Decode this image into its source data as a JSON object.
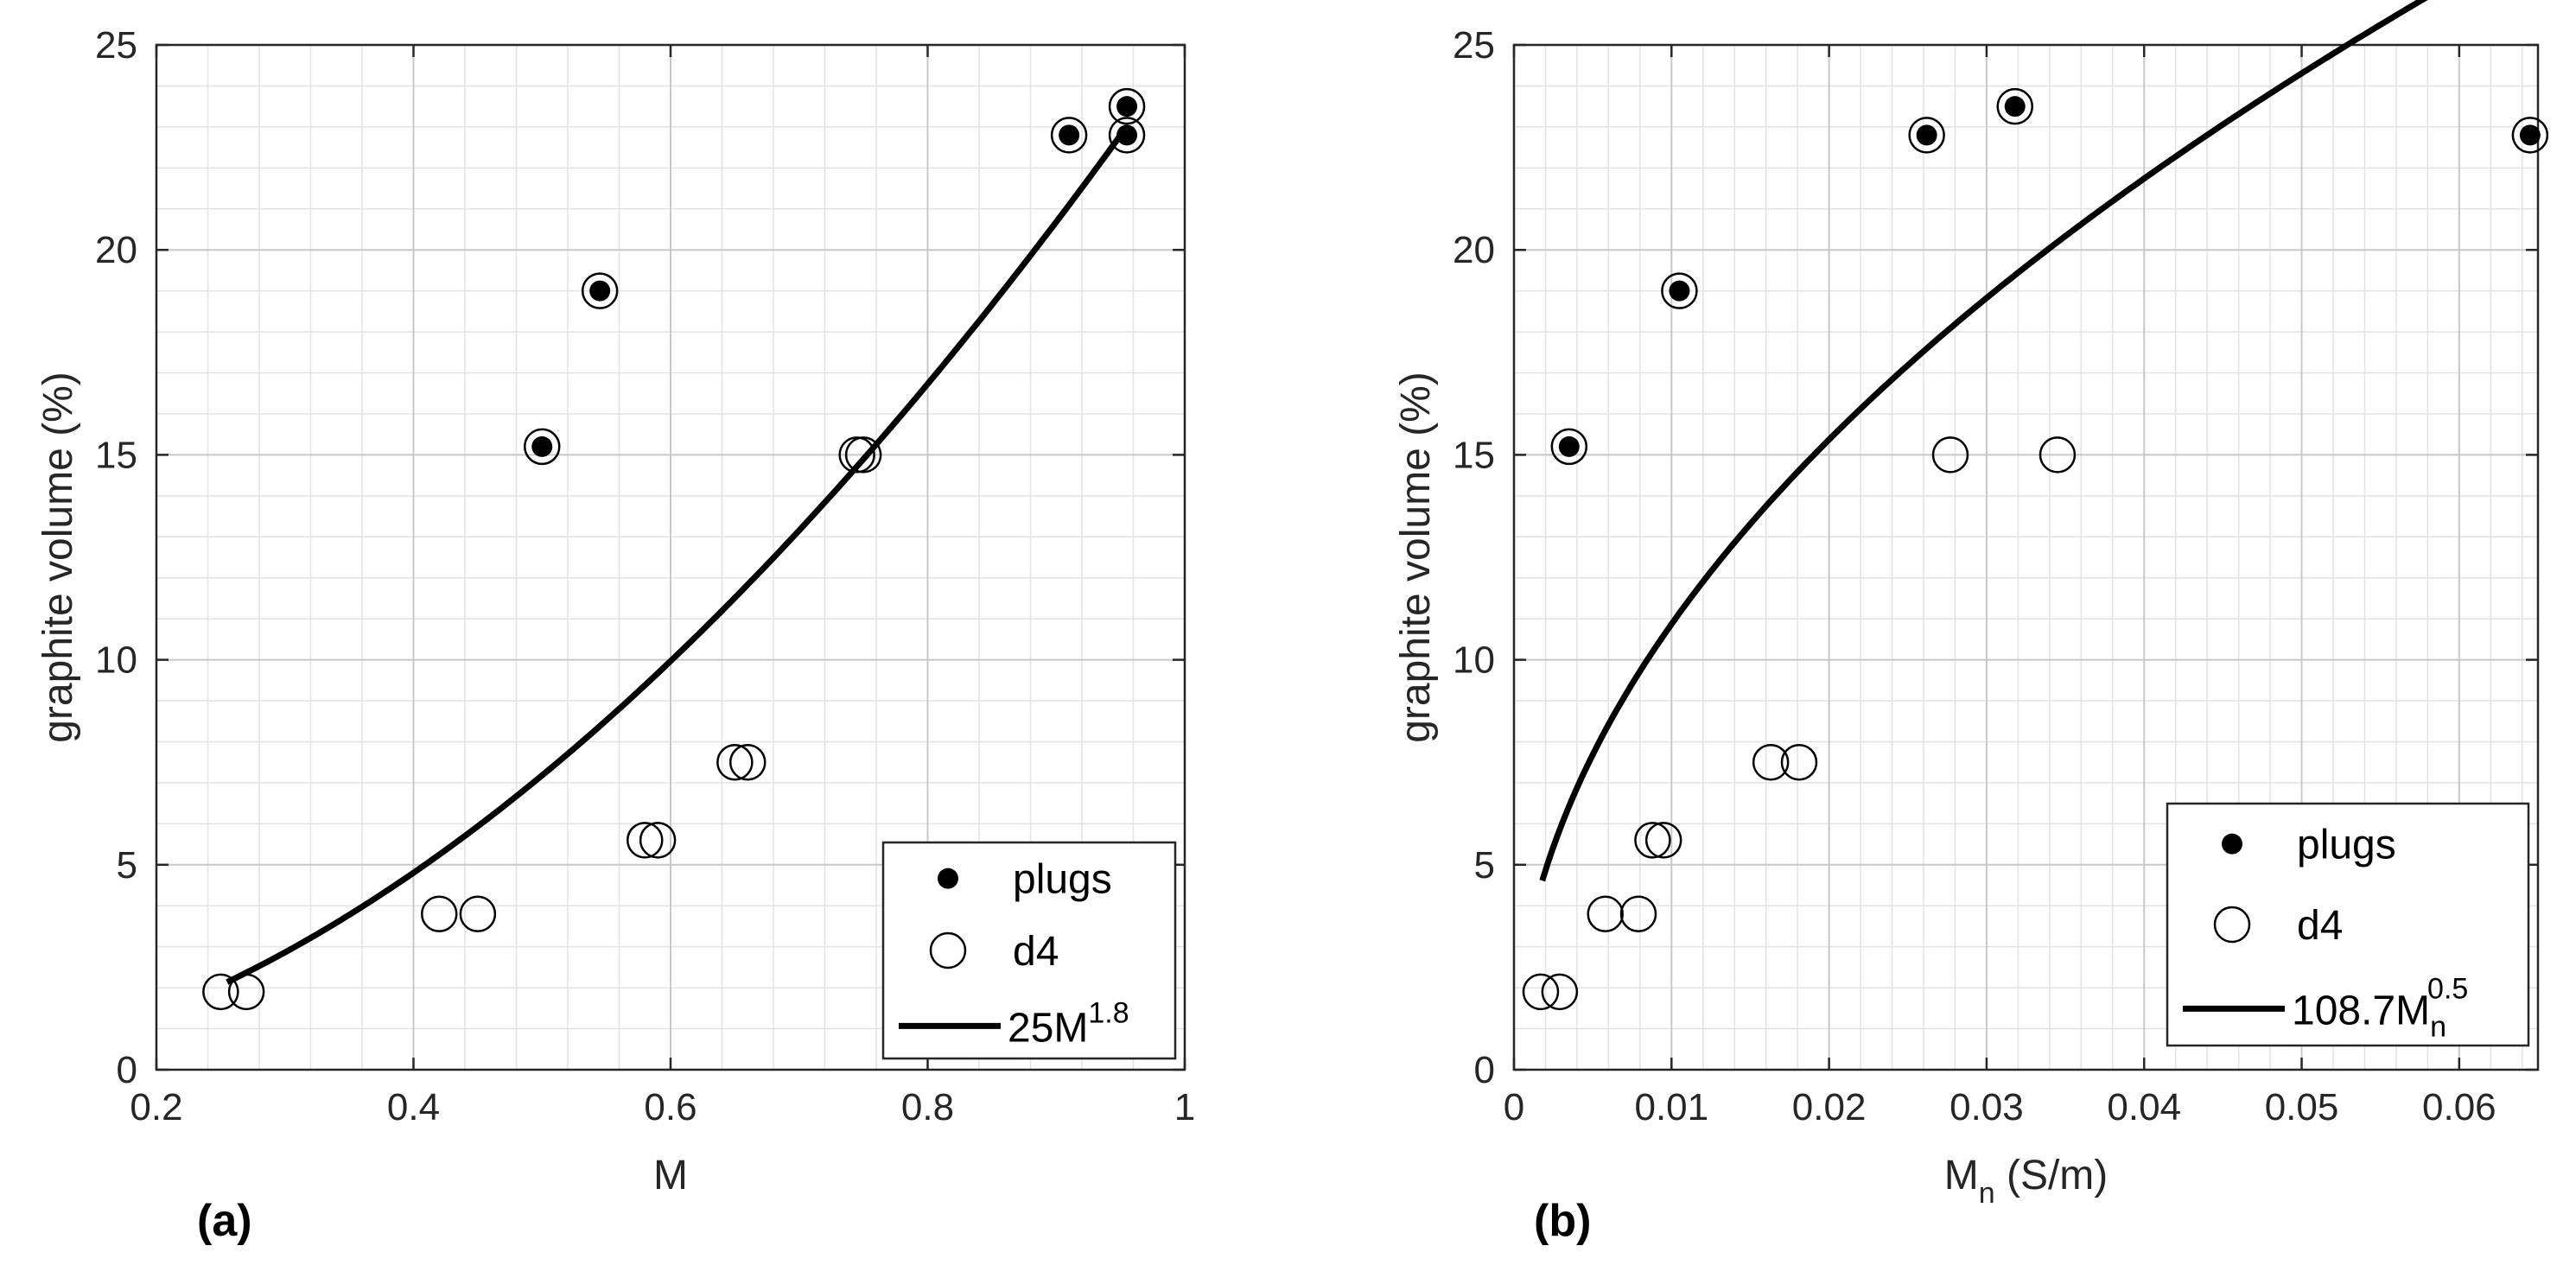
{
  "chart_data": [
    {
      "type": "scatter",
      "panel_label": "(a)",
      "xlabel": "M",
      "ylabel": "graphite volume (%)",
      "xlim": [
        0.2,
        1
      ],
      "ylim": [
        0,
        25
      ],
      "xticks": [
        0.2,
        0.4,
        0.6,
        0.8,
        1
      ],
      "xtick_labels": [
        "0.2",
        "0.4",
        "0.6",
        "0.8",
        "1"
      ],
      "yticks": [
        0,
        5,
        10,
        15,
        20,
        25
      ],
      "ytick_labels": [
        "0",
        "5",
        "10",
        "15",
        "20",
        "25"
      ],
      "grid": true,
      "minor_grid": true,
      "legend_position": "bottom-right",
      "series": [
        {
          "name": "plugs",
          "marker": "filled-circle",
          "x": [
            0.5,
            0.545,
            0.91,
            0.955,
            0.955
          ],
          "y": [
            15.2,
            19.0,
            22.8,
            23.5,
            22.8
          ]
        },
        {
          "name": "d4",
          "marker": "open-circle",
          "x": [
            0.25,
            0.27,
            0.42,
            0.45,
            0.58,
            0.59,
            0.65,
            0.66,
            0.745,
            0.75,
            0.5,
            0.545,
            0.91,
            0.955,
            0.955
          ],
          "y": [
            1.9,
            1.9,
            3.8,
            3.8,
            5.6,
            5.6,
            7.5,
            7.5,
            15.0,
            15.0,
            15.2,
            19.0,
            22.8,
            23.5,
            22.8
          ]
        },
        {
          "name": "fit",
          "marker": "line",
          "coefficient": 25,
          "exponent": 1.8,
          "x_range": [
            0.255,
            0.955
          ]
        }
      ],
      "legend": {
        "plugs": "plugs",
        "d4": "d4",
        "fit_base": "25M",
        "fit_sup": "1.8",
        "fit_sub": ""
      }
    },
    {
      "type": "scatter",
      "panel_label": "(b)",
      "xlabel": "M",
      "xlabel_sub": "n",
      "xlabel_units": " (S/m)",
      "ylabel": "graphite volume (%)",
      "xlim": [
        0,
        0.065
      ],
      "ylim": [
        0,
        25
      ],
      "xticks": [
        0,
        0.01,
        0.02,
        0.03,
        0.04,
        0.05,
        0.06
      ],
      "xtick_labels": [
        "0",
        "0.01",
        "0.02",
        "0.03",
        "0.04",
        "0.05",
        "0.06"
      ],
      "yticks": [
        0,
        5,
        10,
        15,
        20,
        25
      ],
      "ytick_labels": [
        "0",
        "5",
        "10",
        "15",
        "20",
        "25"
      ],
      "grid": true,
      "minor_grid": true,
      "legend_position": "bottom-right",
      "series": [
        {
          "name": "plugs",
          "marker": "filled-circle",
          "x": [
            0.0035,
            0.0105,
            0.0262,
            0.0318,
            0.0645
          ],
          "y": [
            15.2,
            19.0,
            22.8,
            23.5,
            22.8
          ]
        },
        {
          "name": "d4",
          "marker": "open-circle",
          "x": [
            0.0017,
            0.0029,
            0.0058,
            0.0079,
            0.0088,
            0.0095,
            0.0163,
            0.0181,
            0.0277,
            0.0345,
            0.0035,
            0.0105,
            0.0262,
            0.0318,
            0.0645
          ],
          "y": [
            1.9,
            1.9,
            3.8,
            3.8,
            5.6,
            5.6,
            7.5,
            7.5,
            15.0,
            15.0,
            15.2,
            19.0,
            22.8,
            23.5,
            22.8
          ]
        },
        {
          "name": "fit",
          "marker": "line",
          "coefficient": 108.7,
          "exponent": 0.5,
          "x_range": [
            0.0018,
            0.0645
          ]
        }
      ],
      "legend": {
        "plugs": "plugs",
        "d4": "d4",
        "fit_base": "108.7M",
        "fit_sup": "0.5",
        "fit_sub": "n"
      }
    }
  ]
}
